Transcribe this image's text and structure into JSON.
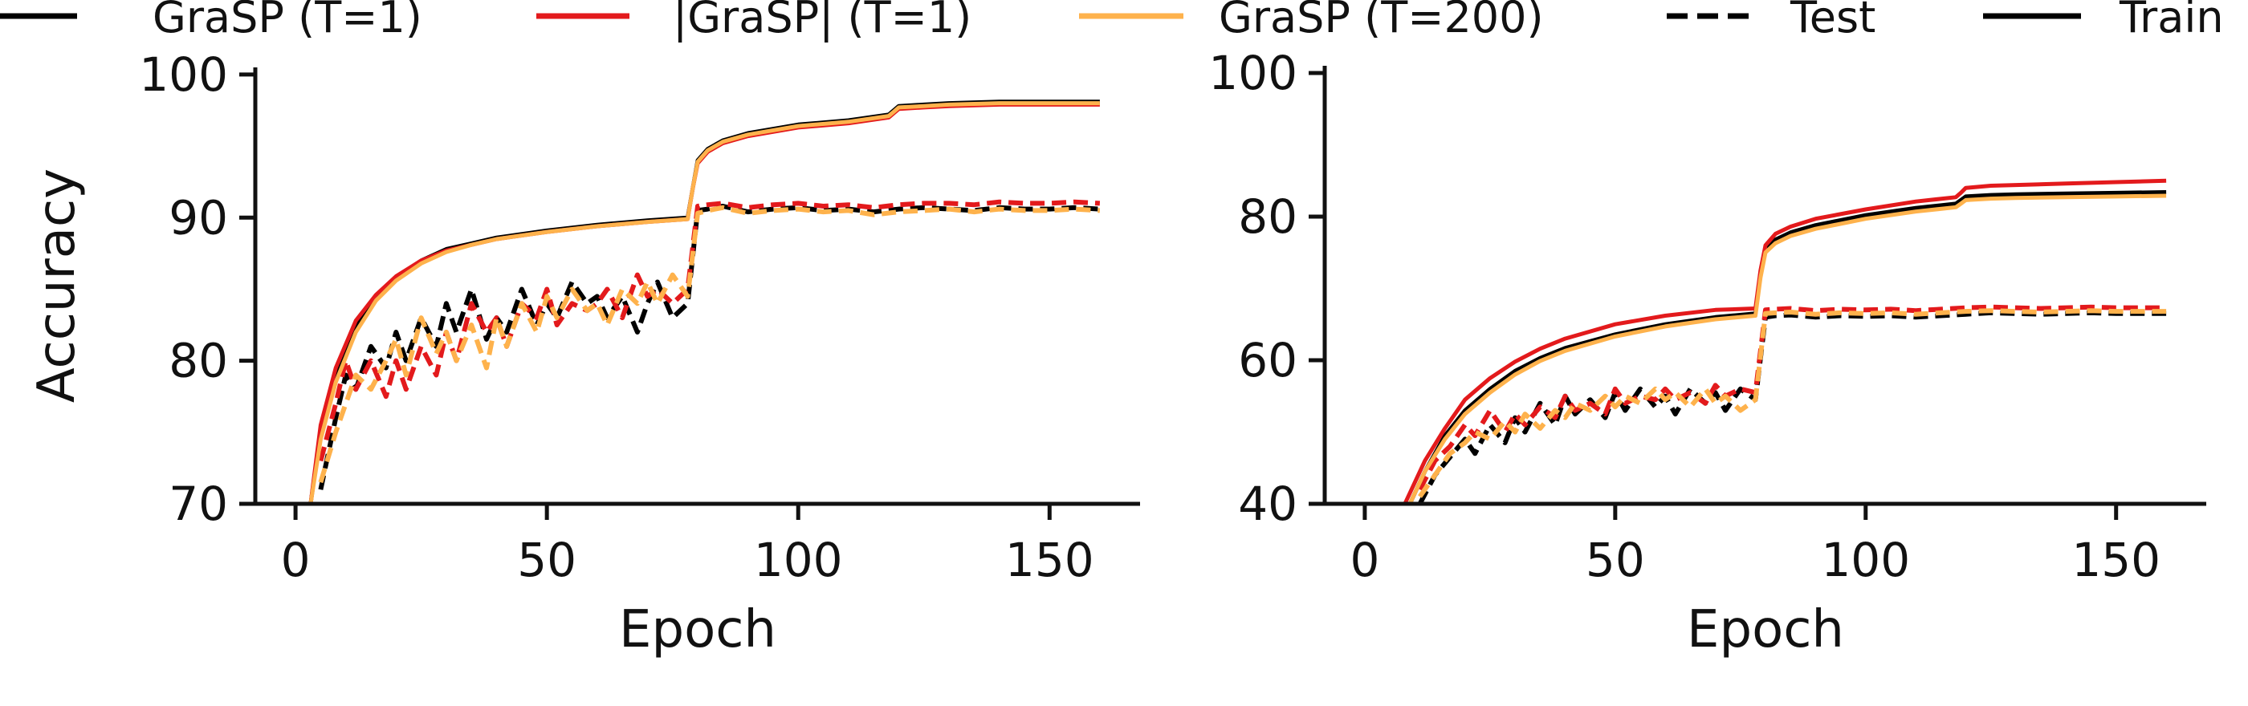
{
  "chart_data": [
    {
      "type": "line",
      "panel": "left",
      "xlabel": "Epoch",
      "ylabel": "Accuracy",
      "xlim": [
        -8,
        168
      ],
      "ylim": [
        70,
        100.5
      ],
      "xticks": [
        0,
        50,
        100,
        150
      ],
      "yticks": [
        70,
        80,
        90,
        100
      ],
      "series": [
        {
          "name": "GraSP (T=1) Train",
          "method": "GraSP (T=1)",
          "split": "Train",
          "x": [
            3,
            5,
            8,
            12,
            16,
            20,
            25,
            30,
            35,
            40,
            50,
            60,
            70,
            78,
            79,
            80,
            82,
            85,
            90,
            100,
            110,
            118,
            119,
            120,
            125,
            130,
            140,
            150,
            160
          ],
          "y": [
            70,
            75,
            79,
            82.5,
            84.5,
            85.8,
            87,
            87.8,
            88.2,
            88.6,
            89.1,
            89.5,
            89.8,
            90,
            92,
            94,
            94.8,
            95.4,
            95.9,
            96.5,
            96.8,
            97.2,
            97.5,
            97.8,
            97.9,
            98,
            98.1,
            98.1,
            98.1
          ]
        },
        {
          "name": "|GraSP| (T=1) Train",
          "method": "|GraSP| (T=1)",
          "split": "Train",
          "x": [
            3,
            5,
            8,
            12,
            16,
            20,
            25,
            30,
            35,
            40,
            50,
            60,
            70,
            78,
            79,
            80,
            82,
            85,
            90,
            100,
            110,
            118,
            119,
            120,
            125,
            130,
            140,
            150,
            160
          ],
          "y": [
            70,
            75.5,
            79.5,
            82.8,
            84.6,
            85.9,
            87,
            87.7,
            88.1,
            88.5,
            89,
            89.4,
            89.7,
            89.9,
            92,
            93.8,
            94.6,
            95.2,
            95.7,
            96.3,
            96.6,
            97,
            97.3,
            97.6,
            97.7,
            97.8,
            97.9,
            97.9,
            97.9
          ]
        },
        {
          "name": "GraSP (T=200) Train",
          "method": "GraSP (T=200)",
          "split": "Train",
          "x": [
            3,
            5,
            8,
            12,
            16,
            20,
            25,
            30,
            35,
            40,
            50,
            60,
            70,
            78,
            79,
            80,
            82,
            85,
            90,
            100,
            110,
            118,
            119,
            120,
            125,
            130,
            140,
            150,
            160
          ],
          "y": [
            70,
            74.5,
            78.5,
            82,
            84.2,
            85.6,
            86.8,
            87.6,
            88.1,
            88.5,
            89,
            89.4,
            89.7,
            89.9,
            92,
            93.9,
            94.7,
            95.3,
            95.8,
            96.4,
            96.7,
            97.1,
            97.4,
            97.7,
            97.8,
            97.9,
            98,
            98,
            98
          ]
        },
        {
          "name": "GraSP (T=1) Test",
          "method": "GraSP (T=1)",
          "split": "Test",
          "x": [
            5,
            8,
            10,
            12,
            15,
            18,
            20,
            22,
            25,
            28,
            30,
            32,
            35,
            38,
            40,
            42,
            45,
            48,
            50,
            52,
            55,
            58,
            60,
            62,
            65,
            68,
            70,
            72,
            75,
            78,
            80,
            82,
            85,
            90,
            95,
            100,
            105,
            110,
            115,
            120,
            125,
            130,
            135,
            140,
            145,
            150,
            155,
            160
          ],
          "y": [
            71,
            76,
            79,
            78,
            81,
            79.5,
            82,
            80,
            83,
            81,
            84,
            82,
            85,
            81.5,
            83,
            82,
            85,
            82.5,
            84,
            83,
            85.5,
            84,
            84.5,
            83,
            84.5,
            82,
            84,
            85.5,
            83,
            84,
            90.5,
            90.6,
            90.8,
            90.4,
            90.6,
            90.7,
            90.5,
            90.6,
            90.4,
            90.6,
            90.7,
            90.6,
            90.5,
            90.7,
            90.6,
            90.6,
            90.7,
            90.6
          ]
        },
        {
          "name": "|GraSP| (T=1) Test",
          "method": "|GraSP| (T=1)",
          "split": "Test",
          "x": [
            5,
            8,
            10,
            12,
            15,
            18,
            20,
            22,
            25,
            28,
            30,
            32,
            35,
            38,
            40,
            42,
            45,
            48,
            50,
            52,
            55,
            58,
            60,
            62,
            65,
            68,
            70,
            72,
            75,
            78,
            80,
            82,
            85,
            90,
            95,
            100,
            105,
            110,
            115,
            120,
            125,
            130,
            135,
            140,
            145,
            150,
            155,
            160
          ],
          "y": [
            73,
            77,
            80,
            78,
            80,
            77.5,
            80,
            78,
            81,
            79,
            82,
            80,
            84,
            82,
            83,
            81,
            84,
            83,
            85,
            82.5,
            84,
            83.5,
            84,
            85,
            83,
            86,
            84.5,
            85,
            84,
            85,
            90.8,
            90.9,
            91,
            90.7,
            90.9,
            91,
            90.8,
            90.9,
            90.7,
            90.9,
            91,
            91,
            90.9,
            91.1,
            91,
            91,
            91.1,
            91
          ]
        },
        {
          "name": "GraSP (T=200) Test",
          "method": "GraSP (T=200)",
          "split": "Test",
          "x": [
            5,
            8,
            10,
            12,
            15,
            18,
            20,
            22,
            25,
            28,
            30,
            32,
            35,
            38,
            40,
            42,
            45,
            48,
            50,
            52,
            55,
            58,
            60,
            62,
            65,
            68,
            70,
            72,
            75,
            78,
            80,
            82,
            85,
            90,
            95,
            100,
            105,
            110,
            115,
            120,
            125,
            130,
            135,
            140,
            145,
            150,
            155,
            160
          ],
          "y": [
            71.5,
            75,
            77,
            79,
            78,
            80,
            81.5,
            79,
            83,
            80.5,
            82,
            80,
            82.5,
            79.5,
            83,
            81,
            84,
            82,
            84.5,
            83,
            85,
            83.5,
            84,
            82.5,
            85,
            84,
            85.5,
            84,
            86,
            84.5,
            90.3,
            90.5,
            90.7,
            90.3,
            90.5,
            90.6,
            90.4,
            90.5,
            90.2,
            90.4,
            90.5,
            90.6,
            90.4,
            90.6,
            90.5,
            90.5,
            90.6,
            90.5
          ]
        }
      ]
    },
    {
      "type": "line",
      "panel": "right",
      "xlabel": "Epoch",
      "ylabel": "",
      "xlim": [
        -8,
        168
      ],
      "ylim": [
        40,
        101
      ],
      "xticks": [
        0,
        50,
        100,
        150
      ],
      "yticks": [
        40,
        60,
        80,
        100
      ],
      "series": [
        {
          "name": "GraSP (T=1) Train",
          "method": "GraSP (T=1)",
          "split": "Train",
          "x": [
            9,
            12,
            16,
            20,
            25,
            30,
            35,
            40,
            50,
            60,
            70,
            78,
            79,
            80,
            82,
            85,
            90,
            100,
            110,
            118,
            119,
            120,
            125,
            130,
            140,
            150,
            160
          ],
          "y": [
            40,
            44.5,
            49.5,
            53,
            56,
            58.5,
            60.3,
            61.7,
            63.6,
            65,
            66,
            66.5,
            72,
            75.5,
            76.8,
            77.8,
            78.8,
            80.2,
            81.2,
            81.8,
            82.3,
            82.8,
            83,
            83.1,
            83.2,
            83.3,
            83.4
          ]
        },
        {
          "name": "|GraSP| (T=1) Train",
          "method": "|GraSP| (T=1)",
          "split": "Train",
          "x": [
            8,
            12,
            16,
            20,
            25,
            30,
            35,
            40,
            50,
            60,
            70,
            78,
            79,
            80,
            82,
            85,
            90,
            100,
            110,
            118,
            119,
            120,
            125,
            130,
            140,
            150,
            160
          ],
          "y": [
            40,
            46,
            50.5,
            54.5,
            57.5,
            59.8,
            61.6,
            63,
            65,
            66.2,
            67,
            67.2,
            72.5,
            76,
            77.6,
            78.6,
            79.7,
            81,
            82.1,
            82.7,
            83.3,
            84,
            84.3,
            84.4,
            84.6,
            84.8,
            85
          ]
        },
        {
          "name": "GraSP (T=200) Train",
          "method": "GraSP (T=200)",
          "split": "Train",
          "x": [
            9,
            12,
            16,
            20,
            25,
            30,
            35,
            40,
            50,
            60,
            70,
            78,
            79,
            80,
            82,
            85,
            90,
            100,
            110,
            118,
            119,
            120,
            125,
            130,
            140,
            150,
            160
          ],
          "y": [
            40,
            44.5,
            49,
            52.5,
            55.5,
            58,
            59.9,
            61.3,
            63.3,
            64.7,
            65.7,
            66.2,
            71.5,
            75,
            76.3,
            77.3,
            78.3,
            79.7,
            80.7,
            81.3,
            81.8,
            82.3,
            82.5,
            82.6,
            82.7,
            82.8,
            82.9
          ]
        },
        {
          "name": "GraSP (T=1) Test",
          "method": "GraSP (T=1)",
          "split": "Test",
          "x": [
            11,
            14,
            17,
            20,
            22,
            25,
            28,
            30,
            32,
            35,
            38,
            40,
            42,
            45,
            48,
            50,
            52,
            55,
            58,
            60,
            62,
            65,
            68,
            70,
            72,
            75,
            78,
            80,
            82,
            85,
            90,
            95,
            100,
            105,
            110,
            115,
            120,
            125,
            130,
            135,
            140,
            145,
            150,
            155,
            160
          ],
          "y": [
            40,
            44,
            46.5,
            49,
            47,
            51,
            48.5,
            52,
            50,
            54,
            51,
            55,
            52.5,
            54.5,
            52,
            55.5,
            53,
            56,
            53.5,
            55,
            52.5,
            56,
            54,
            55.5,
            53,
            56,
            54.5,
            66,
            66.2,
            66.3,
            66,
            66.2,
            66.1,
            66.2,
            66,
            66.2,
            66.4,
            66.6,
            66.5,
            66.4,
            66.5,
            66.6,
            66.5,
            66.5,
            66.5
          ]
        },
        {
          "name": "|GraSP| (T=1) Test",
          "method": "|GraSP| (T=1)",
          "split": "Test",
          "x": [
            11,
            14,
            17,
            20,
            22,
            25,
            28,
            30,
            32,
            35,
            38,
            40,
            42,
            45,
            48,
            50,
            52,
            55,
            58,
            60,
            62,
            65,
            68,
            70,
            72,
            75,
            78,
            80,
            82,
            85,
            90,
            95,
            100,
            105,
            110,
            115,
            120,
            125,
            130,
            135,
            140,
            145,
            150,
            155,
            160
          ],
          "y": [
            42,
            46,
            48,
            51,
            49.5,
            53,
            50,
            52.5,
            51,
            53.5,
            52,
            55,
            53,
            54,
            52.5,
            56,
            54,
            55,
            54.5,
            56,
            54.5,
            55.5,
            54,
            56.5,
            55,
            56,
            55.5,
            67,
            67.1,
            67.2,
            66.9,
            67.1,
            67,
            67.1,
            66.9,
            67.1,
            67.3,
            67.4,
            67.3,
            67.2,
            67.3,
            67.4,
            67.3,
            67.3,
            67.3
          ]
        },
        {
          "name": "GraSP (T=200) Test",
          "method": "GraSP (T=200)",
          "split": "Test",
          "x": [
            11,
            14,
            17,
            20,
            22,
            25,
            28,
            30,
            32,
            35,
            38,
            40,
            42,
            45,
            48,
            50,
            52,
            55,
            58,
            60,
            62,
            65,
            68,
            70,
            72,
            75,
            78,
            80,
            82,
            85,
            90,
            95,
            100,
            105,
            110,
            115,
            120,
            125,
            130,
            135,
            140,
            145,
            150,
            155,
            160
          ],
          "y": [
            41,
            44,
            47,
            48.5,
            50,
            49,
            51.5,
            50,
            52.5,
            50.5,
            53,
            52,
            54,
            53,
            55,
            53.5,
            55,
            54,
            56,
            54.5,
            55.5,
            53.5,
            56,
            54,
            55,
            53,
            54.5,
            66.5,
            66.6,
            66.7,
            66.4,
            66.6,
            66.5,
            66.6,
            66.4,
            66.6,
            66.8,
            66.9,
            66.8,
            66.7,
            66.8,
            66.9,
            66.8,
            66.8,
            66.8
          ]
        }
      ]
    }
  ],
  "legend": {
    "placement": "top",
    "entries": [
      {
        "label": "GraSP (T=1)",
        "color": "#000000",
        "dash": "solid"
      },
      {
        "label": "|GraSP| (T=1)",
        "color": "#e31a1c",
        "dash": "solid"
      },
      {
        "label": "GraSP (T=200)",
        "color": "#feb24c",
        "dash": "solid"
      },
      {
        "label": "Test",
        "color": "#000000",
        "dash": "dashed"
      },
      {
        "label": "Train",
        "color": "#000000",
        "dash": "solid"
      }
    ]
  },
  "colors": {
    "GraSP (T=1)": "#000000",
    "|GraSP| (T=1)": "#e31a1c",
    "GraSP (T=200)": "#feb24c",
    "axis": "#111111"
  }
}
